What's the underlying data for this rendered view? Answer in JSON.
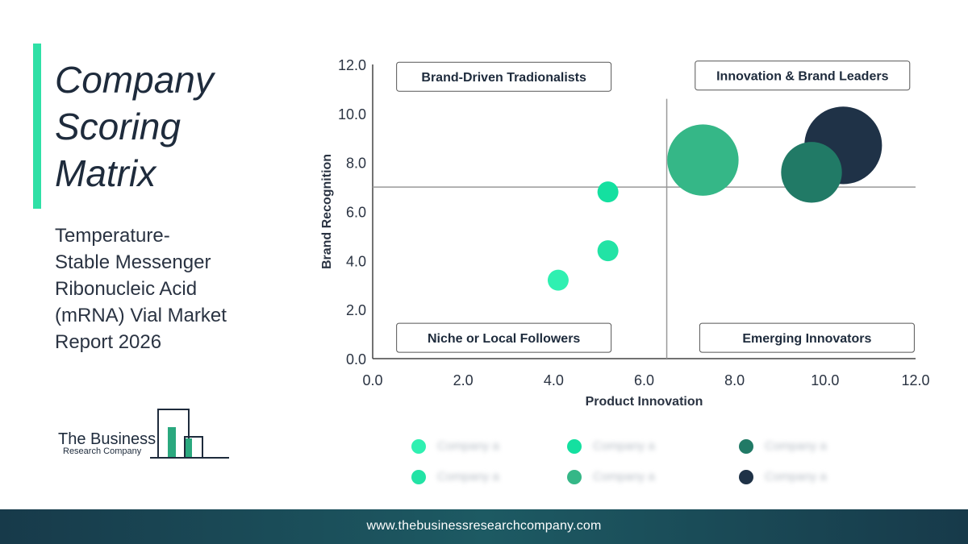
{
  "title_lines": [
    "Company",
    "Scoring",
    "Matrix"
  ],
  "subtitle_lines": [
    "Temperature-",
    "Stable Messenger",
    "Ribonucleic Acid",
    "(mRNA) Vial Market",
    "Report 2026"
  ],
  "logo": {
    "line1": "The Business",
    "line2": "Research Company"
  },
  "footer": {
    "url": "www.thebusinessresearchcompany.com"
  },
  "colors": {
    "accent": "#2fe0a6",
    "dark_navy": "#1f3247",
    "teal_dark": "#217a66",
    "green_mid": "#35b787",
    "green_bright": "#22e3a5",
    "mint": "#2ff0b1"
  },
  "chart_data": {
    "type": "scatter",
    "xlabel": "Product Innovation",
    "ylabel": "Brand Recognition",
    "xlim": [
      0,
      12
    ],
    "ylim": [
      0,
      12
    ],
    "x_ticks": [
      "0.0",
      "2.0",
      "4.0",
      "6.0",
      "8.0",
      "10.0",
      "12.0"
    ],
    "y_ticks": [
      "0.0",
      "2.0",
      "4.0",
      "6.0",
      "8.0",
      "10.0",
      "12.0"
    ],
    "x_tick_values": [
      0,
      2,
      4,
      6,
      8,
      10,
      12
    ],
    "y_tick_values": [
      0,
      2,
      4,
      6,
      8,
      10,
      12
    ],
    "divider": {
      "x": 6.5,
      "y": 7.0
    },
    "quadrant_labels": [
      {
        "text": "Brand-Driven Tradionalists",
        "position": "top-left"
      },
      {
        "text": "Innovation & Brand Leaders",
        "position": "top-right"
      },
      {
        "text": "Niche or Local Followers",
        "position": "bottom-left"
      },
      {
        "text": "Emerging Innovators",
        "position": "bottom-right"
      }
    ],
    "points": [
      {
        "x": 4.1,
        "y": 3.2,
        "size": 1,
        "color": "#2ff0b1"
      },
      {
        "x": 5.2,
        "y": 4.4,
        "size": 1,
        "color": "#22e3a5"
      },
      {
        "x": 5.2,
        "y": 6.8,
        "size": 1,
        "color": "#14e0a0"
      },
      {
        "x": 7.3,
        "y": 8.1,
        "size": 3.4,
        "color": "#35b787"
      },
      {
        "x": 10.4,
        "y": 8.7,
        "size": 3.7,
        "color": "#1f3247"
      },
      {
        "x": 9.7,
        "y": 7.6,
        "size": 2.9,
        "color": "#217a66"
      }
    ],
    "legend": [
      {
        "label": "Company a",
        "color": "#2ff0b1"
      },
      {
        "label": "Company a",
        "color": "#14e0a0"
      },
      {
        "label": "Company a",
        "color": "#217a66"
      },
      {
        "label": "Company a",
        "color": "#22e3a5"
      },
      {
        "label": "Company a",
        "color": "#35b787"
      },
      {
        "label": "Company a",
        "color": "#1f3247"
      }
    ],
    "legend_placement": "bottom",
    "grid": false
  }
}
